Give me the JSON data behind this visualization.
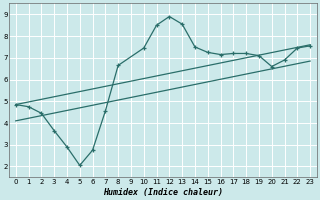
{
  "xlabel": "Humidex (Indice chaleur)",
  "background_color": "#cce9ea",
  "line_color": "#2a6e6a",
  "grid_color": "#ffffff",
  "xlim": [
    -0.5,
    23.5
  ],
  "ylim": [
    1.5,
    9.5
  ],
  "xticks": [
    0,
    1,
    2,
    3,
    4,
    5,
    6,
    7,
    8,
    9,
    10,
    11,
    12,
    13,
    14,
    15,
    16,
    17,
    18,
    19,
    20,
    21,
    22,
    23
  ],
  "yticks": [
    2,
    3,
    4,
    5,
    6,
    7,
    8,
    9
  ],
  "curve1_x": [
    0,
    1,
    2,
    3,
    4,
    5,
    6,
    7,
    8,
    10,
    11,
    12,
    13,
    14,
    15,
    16,
    17,
    18,
    19,
    20,
    21,
    22,
    23
  ],
  "curve1_y": [
    4.85,
    4.75,
    4.45,
    3.65,
    2.9,
    2.05,
    2.75,
    4.55,
    6.65,
    7.45,
    8.5,
    8.9,
    8.55,
    7.5,
    7.25,
    7.15,
    7.2,
    7.2,
    7.1,
    6.6,
    6.9,
    7.45,
    7.55
  ],
  "line1_x": [
    0,
    23
  ],
  "line1_y": [
    4.85,
    7.6
  ],
  "line2_x": [
    0,
    23
  ],
  "line2_y": [
    4.1,
    6.85
  ]
}
